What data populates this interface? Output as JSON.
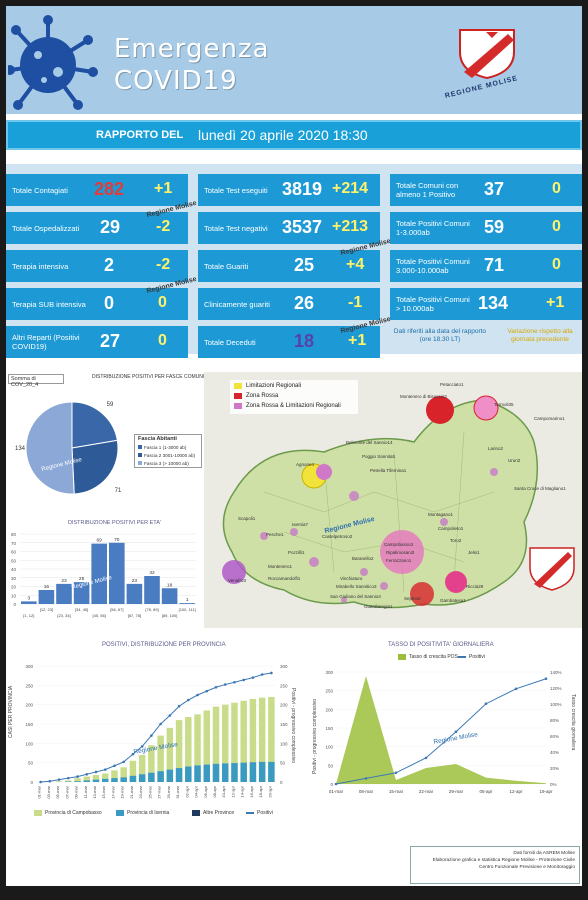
{
  "header": {
    "title_line1": "Emergenza",
    "title_line2": "COVID19",
    "region_label": "REGIONE MOLISE"
  },
  "report": {
    "label": "RAPPORTO DEL",
    "date": "lunedì 20 aprile 2020 18:30"
  },
  "stats": {
    "col1": [
      {
        "label": "Totale Contagiati",
        "value": "282",
        "delta": "+1"
      },
      {
        "label": "Totale Ospedalizzati",
        "value": "29",
        "delta": "-2"
      },
      {
        "label": "Terapia intensiva",
        "value": "2",
        "delta": "-2"
      },
      {
        "label": "Terapia SUB intensiva",
        "value": "0",
        "delta": "0"
      },
      {
        "label": "Altri Reparti (Positivi COVID19)",
        "value": "27",
        "delta": "0"
      }
    ],
    "col2": [
      {
        "label": "Totale Test eseguiti",
        "value": "3819",
        "delta": "+214"
      },
      {
        "label": "Totale Test negativi",
        "value": "3537",
        "delta": "+213"
      },
      {
        "label": "Totale Guariti",
        "value": "25",
        "delta": "+4"
      },
      {
        "label": "Clinicamente guariti",
        "value": "26",
        "delta": "-1"
      },
      {
        "label": "Totale Deceduti",
        "value": "18",
        "delta": "+1"
      }
    ],
    "col3": [
      {
        "label": "Totale Comuni con almeno 1 Positivo",
        "value": "37",
        "delta": "0"
      },
      {
        "label": "Totale Positivi Comuni 1-3.000ab",
        "value": "59",
        "delta": "0"
      },
      {
        "label": "Totale Positivi Comuni 3.000-10.000ab",
        "value": "71",
        "delta": "0"
      },
      {
        "label": "Totale Positivi Comuni > 10.000ab",
        "value": "134",
        "delta": "+1"
      }
    ],
    "ribbon_text": "Regione Molise",
    "note_left": "Dati riferiti alla data del rapporto (ore 18.30 LT)",
    "note_right": "Variazione rispetto alla giornata precedente",
    "colors": {
      "box": "#1d9ad6",
      "delta": "#fff26b",
      "contagiati": "#e23b3b",
      "deceduti": "#5b3fa8"
    }
  },
  "pie": {
    "sum_label": "Somma di COV_20_4",
    "title": "DISTRIBUZIONE POSITIVI PER FASCE COMUNI",
    "legend_title": "Fascia Abitanti",
    "legend": [
      "Fascia 1 (1-3000 ab)",
      "Fascia 2 3001-10000 ab)",
      "Fascia 3 (> 10000 ab)"
    ],
    "labels": [
      "59",
      "71",
      "134"
    ],
    "watermark": "Regione Molise"
  },
  "age_chart": {
    "title": "DISTRIBUZIONE POSITIVI PER ETA'",
    "values": [
      3,
      16,
      23,
      25,
      69,
      70,
      23,
      32,
      18,
      1
    ],
    "ticks_top": [
      "[12, 23]",
      "[34, 45]",
      "[56, 67]",
      "[78, 89]",
      "[100, 111]"
    ],
    "ticks_bottom": [
      "[1, 12]",
      "[23, 34]",
      "[45, 56]",
      "[67, 78]",
      "[89, 100]"
    ],
    "y_ticks": [
      "80",
      "70",
      "60",
      "50",
      "40",
      "30",
      "20",
      "10",
      "0"
    ],
    "watermark": "Regione Molise"
  },
  "map": {
    "legend": [
      "Limitazioni Regionali",
      "Zona Rossa",
      "Zona Rossa & Limitazioni Regionali"
    ],
    "watermark": "Regione Molise",
    "places": [
      "Petacciato1",
      "Montenero di Bisaccia3",
      "Termoli35",
      "Campomarino1",
      "Agnone4",
      "Belmonte del Sannio14",
      "Poggio Sannita5",
      "Larino2",
      "Ururi2",
      "Santa Croce di Magliano1",
      "Petrella Tifernina1",
      "Scapoli1",
      "Isernia7",
      "Pesche1",
      "Castelpetroso2",
      "Montagano1",
      "Campolieto1",
      "Campobasso3",
      "Ripalimosani3",
      "Ferrazzano1",
      "Toro2",
      "Jelsi1",
      "Riccia28",
      "Venafro3",
      "Montenero1",
      "Roccamandolfi1",
      "Baranello2",
      "Vinchiaturo",
      "Mirabello Sannitico3",
      "San Giuliano del Sannio3",
      "Guardiaregia1",
      "Sepino2",
      "Gambatesa1",
      "Pozzilli1"
    ]
  },
  "province_chart": {
    "title": "POSITIVI, DISTRIBUZIONE PER PROVINCIA",
    "y_left_label": "CASI PER PROVINCIA",
    "y_right_label": "Positivi - progressivo complessivo",
    "y_left_ticks": [
      "300",
      "250",
      "200",
      "150",
      "100",
      "50",
      "0"
    ],
    "y_right_ticks": [
      "300",
      "250",
      "200",
      "150",
      "100",
      "50",
      "0"
    ],
    "x_ticks": [
      "01-mar",
      "03-mar",
      "05-mar",
      "07-mar",
      "09-mar",
      "11-mar",
      "13-mar",
      "15-mar",
      "17-mar",
      "19-mar",
      "21-mar",
      "23-mar",
      "25-mar",
      "27-mar",
      "29-mar",
      "31-mar",
      "02-apr",
      "04-apr",
      "06-apr",
      "08-apr",
      "10-apr",
      "12-apr",
      "14-apr",
      "16-apr",
      "18-apr",
      "20-apr"
    ],
    "legend": [
      "Provincia di Campobasso",
      "Provincia di Isernia",
      "Altre Province",
      "Positivi"
    ],
    "watermark": "Regione Molise",
    "colors": {
      "campobasso": "#c8dc8a",
      "isernia": "#3a9ac2",
      "altre": "#203a5e",
      "positivi": "#3c78b4"
    }
  },
  "rate_chart": {
    "title": "TASSO DI POSITIVITA' GIORNALIERA",
    "legend": [
      "Tasso di crescita POS",
      "Positivi"
    ],
    "y_left_label": "Positivi - progressivo complessivo",
    "y_right_label": "Tasso crescita giornaliera",
    "y_left_ticks": [
      "300",
      "250",
      "200",
      "150",
      "100",
      "50",
      "0"
    ],
    "y_right_ticks": [
      "140%",
      "120%",
      "100%",
      "80%",
      "60%",
      "40%",
      "20%",
      "0%"
    ],
    "x_ticks": [
      "01-mar",
      "08-mar",
      "15-mar",
      "22-mar",
      "29-mar",
      "05-apr",
      "12-apr",
      "19-apr"
    ],
    "watermark": "Regione Molise",
    "colors": {
      "tasso": "#9bbf3c",
      "positivi": "#3c78b4"
    }
  },
  "chart_data": [
    {
      "type": "pie",
      "title": "DISTRIBUZIONE POSITIVI PER FASCE COMUNI",
      "categories": [
        "Fascia 1 (1-3000 ab)",
        "Fascia 2 3001-10000 ab)",
        "Fascia 3 (> 10000 ab)"
      ],
      "values": [
        59,
        71,
        134
      ]
    },
    {
      "type": "bar",
      "title": "DISTRIBUZIONE POSITIVI PER ETA'",
      "categories": [
        "[1, 12]",
        "[12, 23]",
        "[23, 34]",
        "[34, 45]",
        "[45, 56]",
        "[56, 67]",
        "[67, 78]",
        "[78, 89]",
        "[89, 100]",
        "[100, 111]"
      ],
      "values": [
        3,
        16,
        23,
        25,
        69,
        70,
        23,
        32,
        18,
        1
      ],
      "ylim": [
        0,
        80
      ]
    },
    {
      "type": "bar",
      "title": "POSITIVI, DISTRIBUZIONE PER PROVINCIA",
      "x": [
        "01-mar",
        "03-mar",
        "05-mar",
        "07-mar",
        "09-mar",
        "11-mar",
        "13-mar",
        "15-mar",
        "17-mar",
        "19-mar",
        "21-mar",
        "23-mar",
        "25-mar",
        "27-mar",
        "29-mar",
        "31-mar",
        "02-apr",
        "04-apr",
        "06-apr",
        "08-apr",
        "10-apr",
        "12-apr",
        "14-apr",
        "16-apr",
        "18-apr",
        "20-apr"
      ],
      "series": [
        {
          "name": "Provincia di Campobasso",
          "values": [
            0,
            0,
            2,
            4,
            10,
            14,
            18,
            22,
            30,
            38,
            55,
            70,
            95,
            120,
            140,
            160,
            168,
            175,
            185,
            195,
            200,
            205,
            210,
            215,
            218,
            220
          ]
        },
        {
          "name": "Provincia di Isernia",
          "values": [
            0,
            0,
            0,
            1,
            2,
            4,
            6,
            8,
            10,
            12,
            16,
            20,
            24,
            28,
            32,
            36,
            40,
            43,
            45,
            47,
            48,
            49,
            50,
            51,
            52,
            52
          ]
        },
        {
          "name": "Positivi",
          "values": [
            0,
            2,
            6,
            10,
            14,
            20,
            26,
            32,
            42,
            52,
            72,
            92,
            120,
            150,
            172,
            196,
            212,
            225,
            235,
            245,
            252,
            258,
            264,
            270,
            278,
            282
          ]
        }
      ],
      "ylim": [
        0,
        300
      ]
    },
    {
      "type": "line",
      "title": "TASSO DI POSITIVITA' GIORNALIERA",
      "x": [
        "01-mar",
        "08-mar",
        "15-mar",
        "22-mar",
        "29-mar",
        "05-apr",
        "12-apr",
        "19-apr"
      ],
      "series": [
        {
          "name": "Tasso di crescita POS",
          "values": [
            0,
            135,
            5,
            20,
            25,
            8,
            4,
            1
          ]
        },
        {
          "name": "Positivi",
          "values": [
            0,
            15,
            30,
            70,
            140,
            215,
            255,
            282
          ]
        }
      ]
    }
  ]
}
